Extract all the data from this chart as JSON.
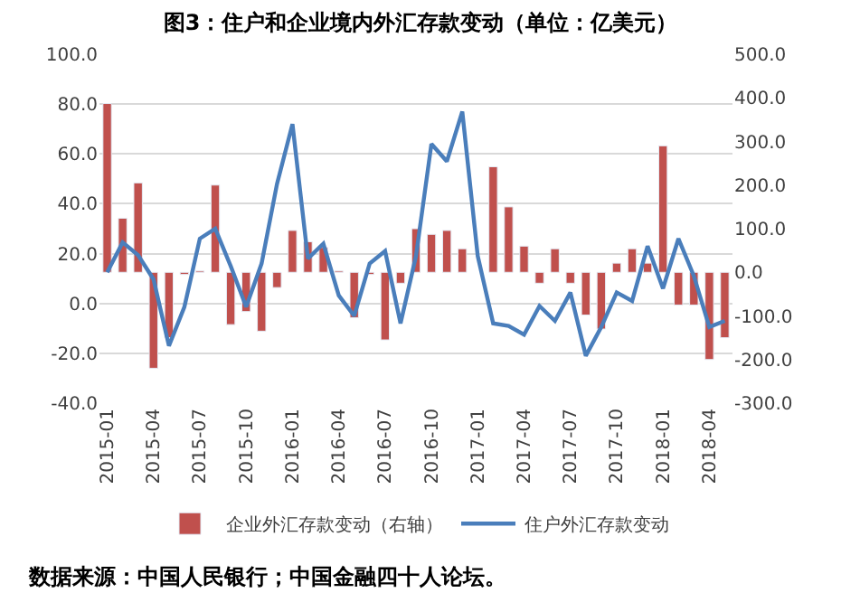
{
  "chart_data": {
    "type": "bar",
    "title": "图3：住户和企业境内外汇存款变动（单位：亿美元）",
    "categories": [
      "2015-01",
      null,
      null,
      "2015-04",
      null,
      null,
      "2015-07",
      null,
      null,
      "2015-10",
      null,
      null,
      "2016-01",
      null,
      null,
      "2016-04",
      null,
      null,
      "2016-07",
      null,
      null,
      "2016-10",
      null,
      null,
      "2017-01",
      null,
      null,
      "2017-04",
      null,
      null,
      "2017-07",
      null,
      null,
      "2017-10",
      null,
      null,
      "2018-01",
      null,
      null,
      "2018-04",
      null
    ],
    "series": [
      {
        "name": "企业外汇存款变动（右轴）",
        "axis": "y2",
        "color": "#c0504d",
        "values": [
          387,
          124,
          205,
          -220,
          -150,
          -5,
          3,
          200,
          -120,
          -90,
          -135,
          -35,
          96,
          70,
          57,
          3,
          -104,
          -5,
          -155,
          -25,
          100,
          87,
          96,
          54,
          null,
          242,
          150,
          60,
          -25,
          54,
          -25,
          -98,
          -130,
          21,
          54,
          21,
          290,
          -75,
          -75,
          -200,
          -150
        ]
      },
      {
        "name": "住户外汇存款变动",
        "type": "line",
        "color": "#4a7ebb",
        "values": [
          12.5,
          24.5,
          19.4,
          9.7,
          -17,
          -1.4,
          26,
          30,
          15,
          -1.4,
          16,
          48,
          72,
          18,
          24,
          3.2,
          -5,
          16,
          21,
          -8,
          19,
          64,
          57,
          77,
          19,
          -8,
          -9,
          -12.5,
          -1,
          -7,
          4.4,
          -21,
          -9.5,
          4.4,
          1,
          23,
          6,
          26,
          11,
          -9.5,
          -7
        ]
      }
    ],
    "ylim": [
      -40,
      100
    ],
    "yticks": [
      {
        "value": -40,
        "label": "-40.0"
      },
      {
        "value": -20,
        "label": "-20.0"
      },
      {
        "value": 0,
        "label": "0.0"
      },
      {
        "value": 20,
        "label": "20.0"
      },
      {
        "value": 40,
        "label": "40.0"
      },
      {
        "value": 60,
        "label": "60.0"
      },
      {
        "value": 80,
        "label": "80.0"
      },
      {
        "value": 100,
        "label": "100.0"
      }
    ],
    "y2lim": [
      -300,
      500
    ],
    "y2ticks": [
      {
        "value": -300,
        "label": "-300.0"
      },
      {
        "value": -200,
        "label": "-200.0"
      },
      {
        "value": -100,
        "label": "-100.0"
      },
      {
        "value": 0,
        "label": "0.0"
      },
      {
        "value": 100,
        "label": "100.0"
      },
      {
        "value": 200,
        "label": "200.0"
      },
      {
        "value": 300,
        "label": "300.0"
      },
      {
        "value": 400,
        "label": "400.0"
      },
      {
        "value": 500,
        "label": "500.0"
      }
    ],
    "grid": "y",
    "legend": "bottom",
    "marker": "none",
    "line_style": "solid",
    "annotations": [
      "数据来源：中国人民银行；中国金融四十人论坛。"
    ]
  }
}
